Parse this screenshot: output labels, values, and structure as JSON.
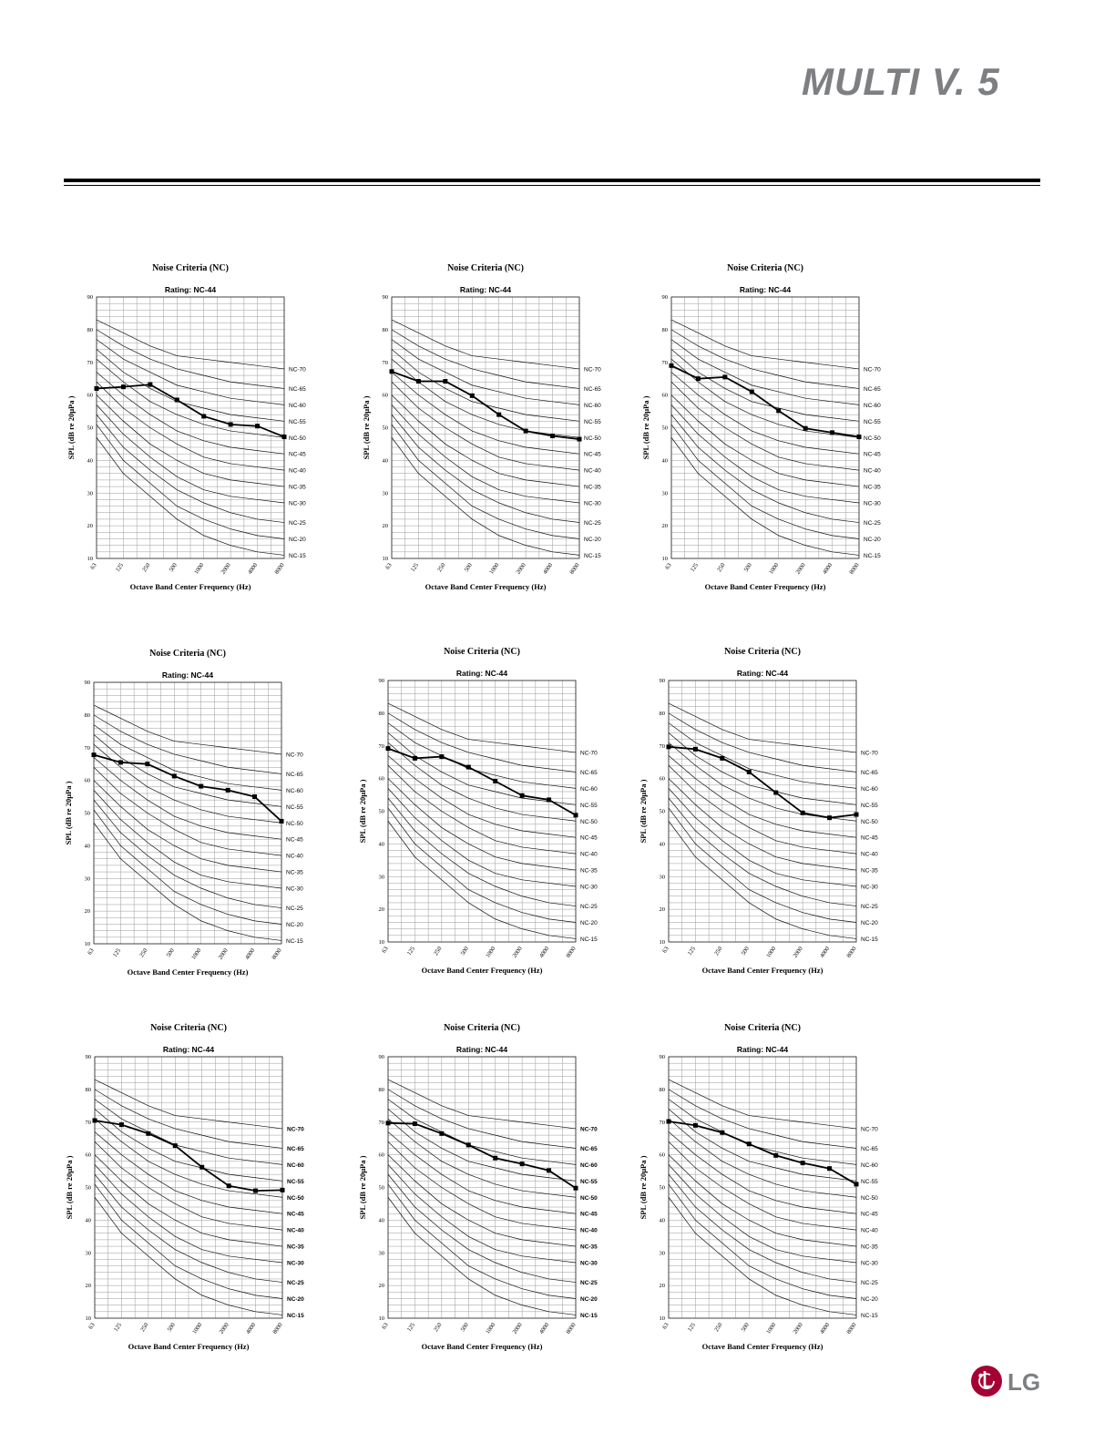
{
  "header": {
    "brand_logo_text": "MULTI V. 5",
    "brand_logo_alt": "MULTI V 5"
  },
  "footer": {
    "lg_logo_text": "LG"
  },
  "nc_curves": {
    "x": [
      63,
      125,
      250,
      500,
      1000,
      2000,
      4000,
      8000
    ],
    "curves": [
      {
        "name": "NC-15",
        "values": [
          47,
          36,
          29,
          22,
          17,
          14,
          12,
          11
        ]
      },
      {
        "name": "NC-20",
        "values": [
          51,
          40,
          33,
          26,
          22,
          19,
          17,
          16
        ]
      },
      {
        "name": "NC-25",
        "values": [
          54,
          44,
          37,
          31,
          27,
          24,
          22,
          21
        ]
      },
      {
        "name": "NC-30",
        "values": [
          57,
          48,
          41,
          35,
          31,
          29,
          28,
          27
        ]
      },
      {
        "name": "NC-35",
        "values": [
          60,
          52,
          45,
          40,
          36,
          34,
          33,
          32
        ]
      },
      {
        "name": "NC-40",
        "values": [
          64,
          56,
          50,
          45,
          41,
          39,
          38,
          37
        ]
      },
      {
        "name": "NC-45",
        "values": [
          67,
          60,
          54,
          49,
          46,
          44,
          43,
          42
        ]
      },
      {
        "name": "NC-50",
        "values": [
          71,
          64,
          58,
          54,
          51,
          49,
          48,
          47
        ]
      },
      {
        "name": "NC-55",
        "values": [
          74,
          67,
          62,
          58,
          56,
          54,
          53,
          52
        ]
      },
      {
        "name": "NC-60",
        "values": [
          77,
          71,
          67,
          63,
          61,
          59,
          58,
          57
        ]
      },
      {
        "name": "NC-65",
        "values": [
          80,
          75,
          71,
          68,
          66,
          64,
          63,
          62
        ]
      },
      {
        "name": "NC-70",
        "values": [
          83,
          79,
          75,
          72,
          71,
          70,
          69,
          68
        ]
      }
    ]
  },
  "chart_data": [
    {
      "type": "line",
      "title": "Noise Criteria (NC)",
      "subtitle": "Rating: NC-44",
      "xlabel": "Octave Band Center Frequency (Hz)",
      "ylabel": "SPL (dB re 20μPa )",
      "x": [
        63,
        125,
        250,
        500,
        1000,
        2000,
        4000,
        8000
      ],
      "ylim": [
        10,
        90
      ],
      "yticks": [
        10,
        20,
        30,
        40,
        50,
        60,
        70,
        80,
        90
      ],
      "grid": true,
      "curve_labels_bold": false,
      "series": [
        {
          "values": [
            62,
            62.5,
            63.2,
            58.5,
            53.5,
            51,
            50.5,
            47.2
          ]
        }
      ]
    },
    {
      "type": "line",
      "title": "Noise Criteria (NC)",
      "subtitle": "Rating: NC-44",
      "xlabel": "Octave Band Center Frequency (Hz)",
      "ylabel": "SPL (dB re 20μPa )",
      "x": [
        63,
        125,
        250,
        500,
        1000,
        2000,
        4000,
        8000
      ],
      "ylim": [
        10,
        90
      ],
      "yticks": [
        10,
        20,
        30,
        40,
        50,
        60,
        70,
        80,
        90
      ],
      "grid": true,
      "curve_labels_bold": false,
      "series": [
        {
          "values": [
            67.2,
            64.2,
            64.2,
            59.8,
            54,
            49,
            47.5,
            46.5
          ]
        }
      ]
    },
    {
      "type": "line",
      "title": "Noise Criteria (NC)",
      "subtitle": "Rating: NC-44",
      "xlabel": "Octave Band Center Frequency (Hz)",
      "ylabel": "SPL (dB re 20μPa )",
      "x": [
        63,
        125,
        250,
        500,
        1000,
        2000,
        4000,
        8000
      ],
      "ylim": [
        10,
        90
      ],
      "yticks": [
        10,
        20,
        30,
        40,
        50,
        60,
        70,
        80,
        90
      ],
      "grid": true,
      "curve_labels_bold": false,
      "series": [
        {
          "values": [
            69,
            65,
            65.5,
            61,
            55.2,
            49.8,
            48.5,
            47.2
          ]
        }
      ]
    },
    {
      "type": "line",
      "title": "Noise Criteria (NC)",
      "subtitle": "Rating: NC-44",
      "xlabel": "Octave Band Center Frequency (Hz)",
      "ylabel": "SPL (dB re 20μPa )",
      "x": [
        63,
        125,
        250,
        500,
        1000,
        2000,
        4000,
        8000
      ],
      "ylim": [
        10,
        90
      ],
      "yticks": [
        10,
        20,
        30,
        40,
        50,
        60,
        70,
        80,
        90
      ],
      "grid": true,
      "curve_labels_bold": false,
      "series": [
        {
          "values": [
            67.8,
            65.5,
            65,
            61.3,
            58.2,
            57,
            55,
            47.5
          ]
        }
      ]
    },
    {
      "type": "line",
      "title": "Noise Criteria (NC)",
      "subtitle": "Rating: NC-44",
      "xlabel": "Octave Band Center Frequency (Hz)",
      "ylabel": "SPL (dB re 20μPa )",
      "x": [
        63,
        125,
        250,
        500,
        1000,
        2000,
        4000,
        8000
      ],
      "ylim": [
        10,
        90
      ],
      "yticks": [
        10,
        20,
        30,
        40,
        50,
        60,
        70,
        80,
        90
      ],
      "grid": true,
      "curve_labels_bold": false,
      "series": [
        {
          "values": [
            69.2,
            66.2,
            66.7,
            63.5,
            59.2,
            54.8,
            53.5,
            48.8
          ]
        }
      ]
    },
    {
      "type": "line",
      "title": "Noise Criteria (NC)",
      "subtitle": "Rating: NC-44",
      "xlabel": "Octave Band Center Frequency (Hz)",
      "ylabel": "SPL (dB re 20μPa )",
      "x": [
        63,
        125,
        250,
        500,
        1000,
        2000,
        4000,
        8000
      ],
      "ylim": [
        10,
        90
      ],
      "yticks": [
        10,
        20,
        30,
        40,
        50,
        60,
        70,
        80,
        90
      ],
      "grid": true,
      "curve_labels_bold": false,
      "series": [
        {
          "values": [
            69.7,
            69,
            66.2,
            62,
            55.7,
            49.5,
            48,
            49
          ]
        }
      ]
    },
    {
      "type": "line",
      "title": "Noise Criteria (NC)",
      "subtitle": "Rating: NC-44",
      "xlabel": "Octave Band Center Frequency (Hz)",
      "ylabel": "SPL (dB re 20μPa )",
      "x": [
        63,
        125,
        250,
        500,
        1000,
        2000,
        4000,
        8000
      ],
      "ylim": [
        10,
        90
      ],
      "yticks": [
        10,
        20,
        30,
        40,
        50,
        60,
        70,
        80,
        90
      ],
      "grid": true,
      "curve_labels_bold": true,
      "series": [
        {
          "values": [
            70.5,
            69.2,
            66.5,
            62.8,
            56.2,
            50.5,
            49,
            49.2
          ]
        }
      ]
    },
    {
      "type": "line",
      "title": "Noise Criteria (NC)",
      "subtitle": "Rating: NC-44",
      "xlabel": "Octave Band Center Frequency (Hz)",
      "ylabel": "SPL (dB re 20μPa )",
      "x": [
        63,
        125,
        250,
        500,
        1000,
        2000,
        4000,
        8000
      ],
      "ylim": [
        10,
        90
      ],
      "yticks": [
        10,
        20,
        30,
        40,
        50,
        60,
        70,
        80,
        90
      ],
      "grid": true,
      "curve_labels_bold": true,
      "series": [
        {
          "values": [
            69.7,
            69.5,
            66.5,
            63,
            59,
            57.2,
            55.2,
            49.8
          ]
        }
      ]
    },
    {
      "type": "line",
      "title": "Noise Criteria (NC)",
      "subtitle": "Rating: NC-44",
      "xlabel": "Octave Band Center Frequency (Hz)",
      "ylabel": "SPL (dB re 20μPa )",
      "x": [
        63,
        125,
        250,
        500,
        1000,
        2000,
        4000,
        8000
      ],
      "ylim": [
        10,
        90
      ],
      "yticks": [
        10,
        20,
        30,
        40,
        50,
        60,
        70,
        80,
        90
      ],
      "grid": true,
      "curve_labels_bold": false,
      "series": [
        {
          "values": [
            70.2,
            69,
            66.8,
            63.3,
            59.8,
            57.5,
            55.8,
            51
          ]
        }
      ]
    }
  ]
}
